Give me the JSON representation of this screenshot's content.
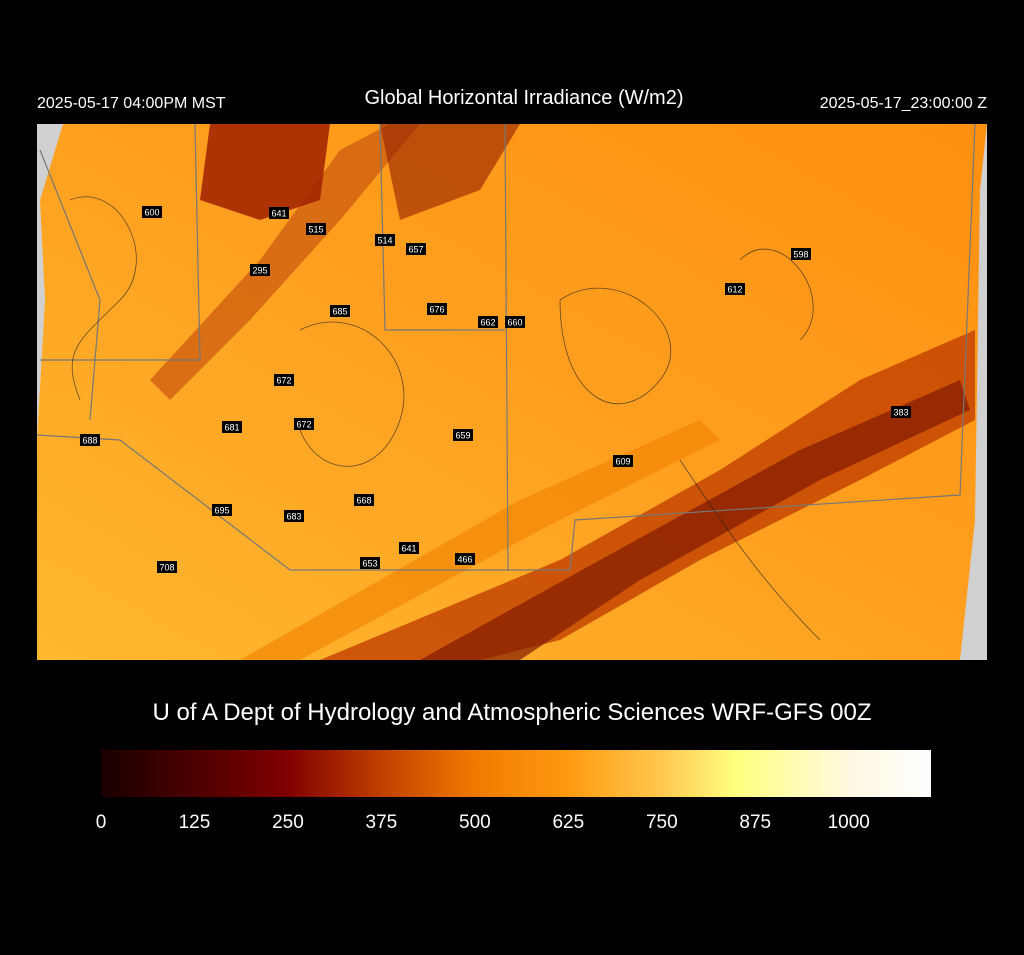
{
  "header": {
    "local_time": "2025-05-17 04:00PM MST",
    "title": "Global Horizontal Irradiance (W/m2)",
    "utc_time": "2025-05-17_23:00:00 Z"
  },
  "stations": [
    600,
    641,
    515,
    514,
    657,
    295,
    598,
    612,
    685,
    676,
    662,
    660,
    672,
    383,
    681,
    672,
    688,
    659,
    609,
    668,
    695,
    683,
    641,
    653,
    466,
    708
  ],
  "credit": "U of A Dept of Hydrology and Atmospheric Sciences WRF-GFS 00Z",
  "colorbar": {
    "lim": [
      0,
      1110
    ],
    "ticks": [
      0,
      125,
      250,
      375,
      500,
      625,
      750,
      875,
      1000
    ],
    "colorscale": [
      [
        0,
        "#1a0000"
      ],
      [
        250,
        "#800000"
      ],
      [
        375,
        "#c04000"
      ],
      [
        500,
        "#f07a00"
      ],
      [
        625,
        "#ff9a10"
      ],
      [
        750,
        "#ffc850"
      ],
      [
        850,
        "#ffff80"
      ],
      [
        1000,
        "#fff8e0"
      ],
      [
        1110,
        "#ffffff"
      ]
    ]
  }
}
